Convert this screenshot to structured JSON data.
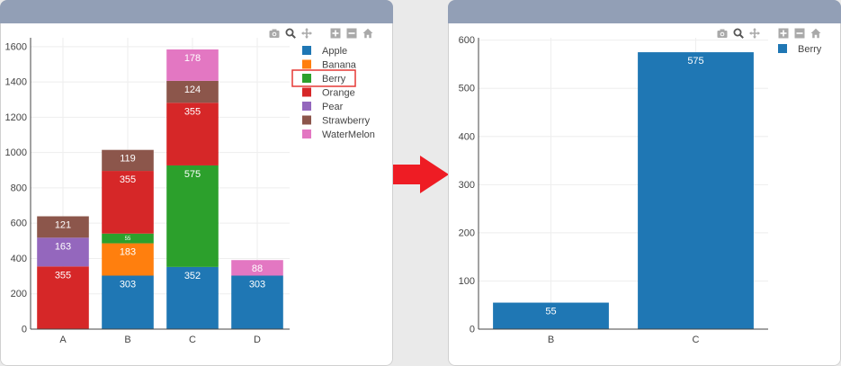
{
  "left": {
    "toolbar_icons": [
      "camera-icon",
      "zoom-icon",
      "pan-icon",
      "zoom-in-icon",
      "zoom-out-icon",
      "home-icon"
    ],
    "chart_data": {
      "type": "bar",
      "barmode": "stack",
      "categories": [
        "A",
        "B",
        "C",
        "D"
      ],
      "series": [
        {
          "name": "Apple",
          "color": "#1f77b4",
          "values": [
            null,
            303,
            352,
            303
          ]
        },
        {
          "name": "Banana",
          "color": "#ff7f0e",
          "values": [
            null,
            183,
            null,
            null
          ]
        },
        {
          "name": "Berry",
          "color": "#2ca02c",
          "values": [
            null,
            55,
            575,
            null
          ]
        },
        {
          "name": "Orange",
          "color": "#d62728",
          "values": [
            355,
            355,
            355,
            null
          ]
        },
        {
          "name": "Pear",
          "color": "#9467bd",
          "values": [
            163,
            null,
            null,
            null
          ]
        },
        {
          "name": "Strawberry",
          "color": "#8c564b",
          "values": [
            121,
            119,
            124,
            null
          ]
        },
        {
          "name": "WaterMelon",
          "color": "#e377c2",
          "values": [
            null,
            null,
            178,
            88
          ]
        }
      ],
      "ylim": [
        0,
        1650
      ],
      "yticks": [
        0,
        200,
        400,
        600,
        800,
        1000,
        1200,
        1400,
        1600
      ],
      "grid": true,
      "legend": "right",
      "highlighted_legend_item": "Berry",
      "tiny_label_series": "Berry",
      "tiny_label_category": "B",
      "tiny_label_text": "55"
    }
  },
  "right": {
    "toolbar_icons": [
      "camera-icon",
      "zoom-icon",
      "pan-icon",
      "zoom-in-icon",
      "zoom-out-icon",
      "home-icon"
    ],
    "chart_data": {
      "type": "bar",
      "categories": [
        "B",
        "C"
      ],
      "series": [
        {
          "name": "Berry",
          "color": "#1f77b4",
          "values": [
            55,
            575
          ]
        }
      ],
      "ylim": [
        0,
        605
      ],
      "yticks": [
        0,
        100,
        200,
        300,
        400,
        500,
        600
      ],
      "grid": true,
      "legend": "right"
    }
  },
  "arrow_color": "#ee1c24",
  "highlight_color": "#e53935"
}
